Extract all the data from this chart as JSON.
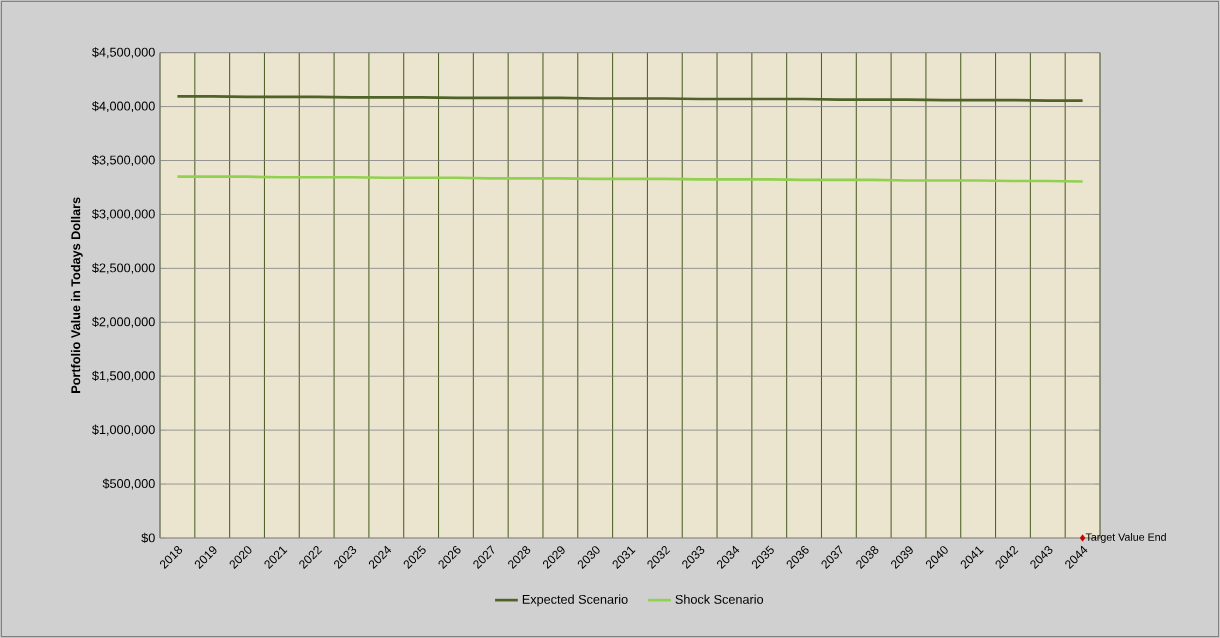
{
  "chart_data": {
    "type": "line",
    "categories": [
      "2018",
      "2019",
      "2020",
      "2021",
      "2022",
      "2023",
      "2024",
      "2025",
      "2026",
      "2027",
      "2028",
      "2029",
      "2030",
      "2031",
      "2032",
      "2033",
      "2034",
      "2035",
      "2036",
      "2037",
      "2038",
      "2039",
      "2040",
      "2041",
      "2042",
      "2043",
      "2044"
    ],
    "series": [
      {
        "name": "Expected Scenario",
        "color": "#4f6228",
        "values": [
          4095000,
          4095000,
          4090000,
          4090000,
          4090000,
          4085000,
          4085000,
          4085000,
          4080000,
          4080000,
          4080000,
          4080000,
          4075000,
          4075000,
          4075000,
          4070000,
          4070000,
          4070000,
          4070000,
          4065000,
          4065000,
          4065000,
          4060000,
          4060000,
          4060000,
          4055000,
          4055000
        ]
      },
      {
        "name": "Shock Scenario",
        "color": "#92d050",
        "values": [
          3350000,
          3350000,
          3350000,
          3345000,
          3345000,
          3345000,
          3340000,
          3340000,
          3340000,
          3335000,
          3335000,
          3335000,
          3330000,
          3330000,
          3330000,
          3325000,
          3325000,
          3325000,
          3320000,
          3320000,
          3320000,
          3315000,
          3315000,
          3315000,
          3310000,
          3310000,
          3305000
        ]
      },
      {
        "name": "Target Value End",
        "type": "scatter",
        "marker": "diamond",
        "color": "#c00000",
        "values": [
          null,
          null,
          null,
          null,
          null,
          null,
          null,
          null,
          null,
          null,
          null,
          null,
          null,
          null,
          null,
          null,
          null,
          null,
          null,
          null,
          null,
          null,
          null,
          null,
          null,
          null,
          0
        ]
      }
    ],
    "ylabel": "Portfolio Value in Todays Dollars",
    "ylim": [
      0,
      4500000
    ],
    "yticks": [
      {
        "value": 0,
        "label": "$0"
      },
      {
        "value": 500000,
        "label": "$500,000"
      },
      {
        "value": 1000000,
        "label": "$1,000,000"
      },
      {
        "value": 1500000,
        "label": "$1,500,000"
      },
      {
        "value": 2000000,
        "label": "$2,000,000"
      },
      {
        "value": 2500000,
        "label": "$2,500,000"
      },
      {
        "value": 3000000,
        "label": "$3,000,000"
      },
      {
        "value": 3500000,
        "label": "$3,500,000"
      },
      {
        "value": 4000000,
        "label": "$4,000,000"
      },
      {
        "value": 4500000,
        "label": "$4,500,000"
      }
    ],
    "grid": true,
    "legend": "bottom"
  }
}
